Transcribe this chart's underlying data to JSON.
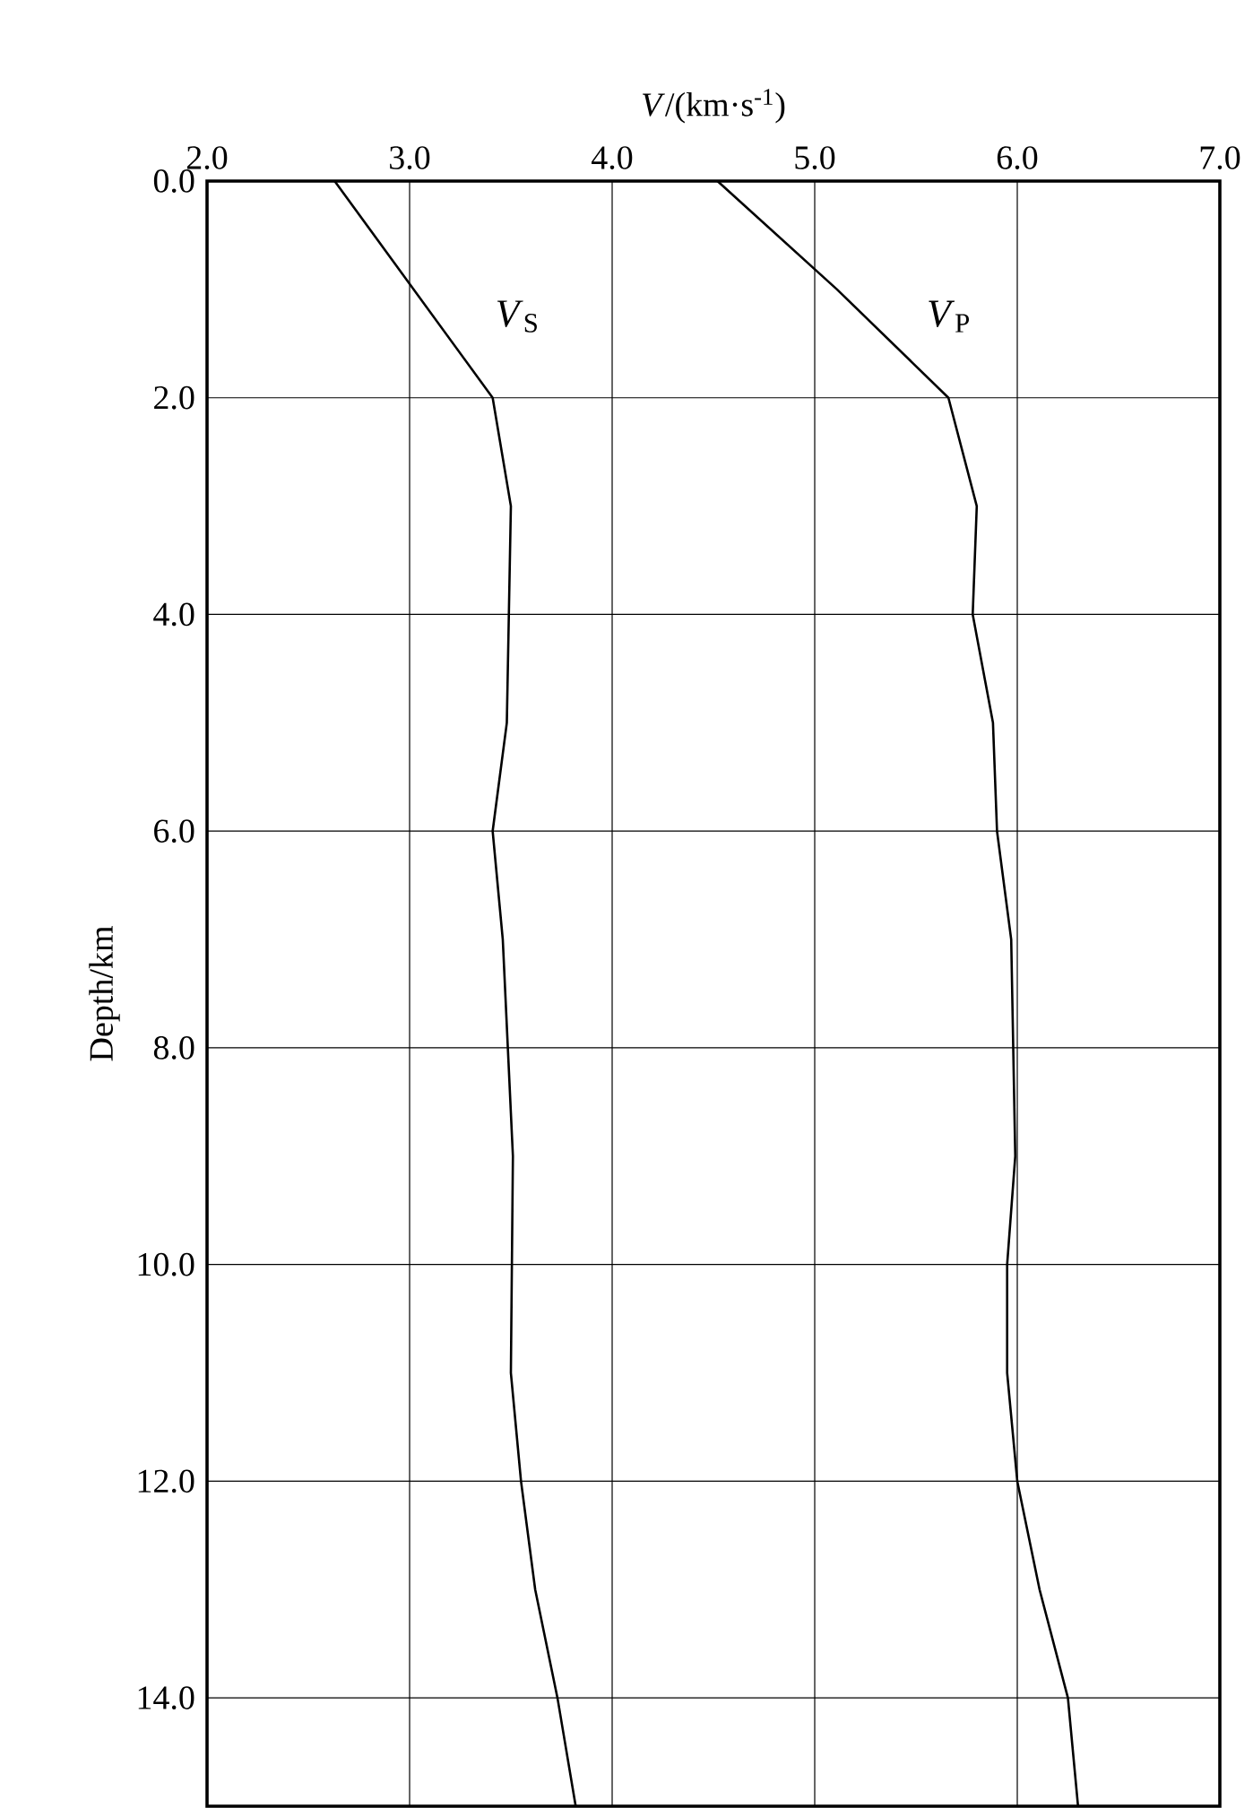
{
  "chart_data": {
    "type": "line",
    "xlabel": "*V*/(km·s$^{-1}$)",
    "ylabel": "Depth/km",
    "xlim": [
      2,
      7
    ],
    "ylim": [
      15,
      0
    ],
    "xticks": [
      {
        "value": 2,
        "label": "2.0"
      },
      {
        "value": 3,
        "label": "3.0"
      },
      {
        "value": 4,
        "label": "4.0"
      },
      {
        "value": 5,
        "label": "5.0"
      },
      {
        "value": 6,
        "label": "6.0"
      },
      {
        "value": 7,
        "label": "7.0"
      }
    ],
    "yticks": [
      {
        "value": 0,
        "label": "0.0"
      },
      {
        "value": 2,
        "label": "2.0"
      },
      {
        "value": 4,
        "label": "4.0"
      },
      {
        "value": 6,
        "label": "6.0"
      },
      {
        "value": 8,
        "label": "8.0"
      },
      {
        "value": 10,
        "label": "10.0"
      },
      {
        "value": 12,
        "label": "12.0"
      },
      {
        "value": 14,
        "label": "14.0"
      }
    ],
    "grid": true,
    "marker": "none",
    "line_style": "solid",
    "series": [
      {
        "name": "*V*$_{S}$",
        "color": "#000000",
        "x": [
          2.63,
          3.41,
          3.5,
          3.48,
          3.41,
          3.46,
          3.51,
          3.5,
          3.55,
          3.62,
          3.73,
          3.82
        ],
        "values": [
          0,
          2,
          3,
          5,
          6,
          7,
          9,
          11,
          12,
          13,
          14,
          15
        ]
      },
      {
        "name": "*V*$_{P}$",
        "color": "#000000",
        "x": [
          4.52,
          5.11,
          5.66,
          5.8,
          5.78,
          5.88,
          5.9,
          5.97,
          5.99,
          5.95,
          5.95,
          6.0,
          6.11,
          6.25,
          6.3
        ],
        "values": [
          0,
          1,
          2,
          3,
          4,
          5,
          6,
          7,
          9,
          10,
          11,
          12,
          13,
          14,
          15
        ]
      }
    ]
  }
}
